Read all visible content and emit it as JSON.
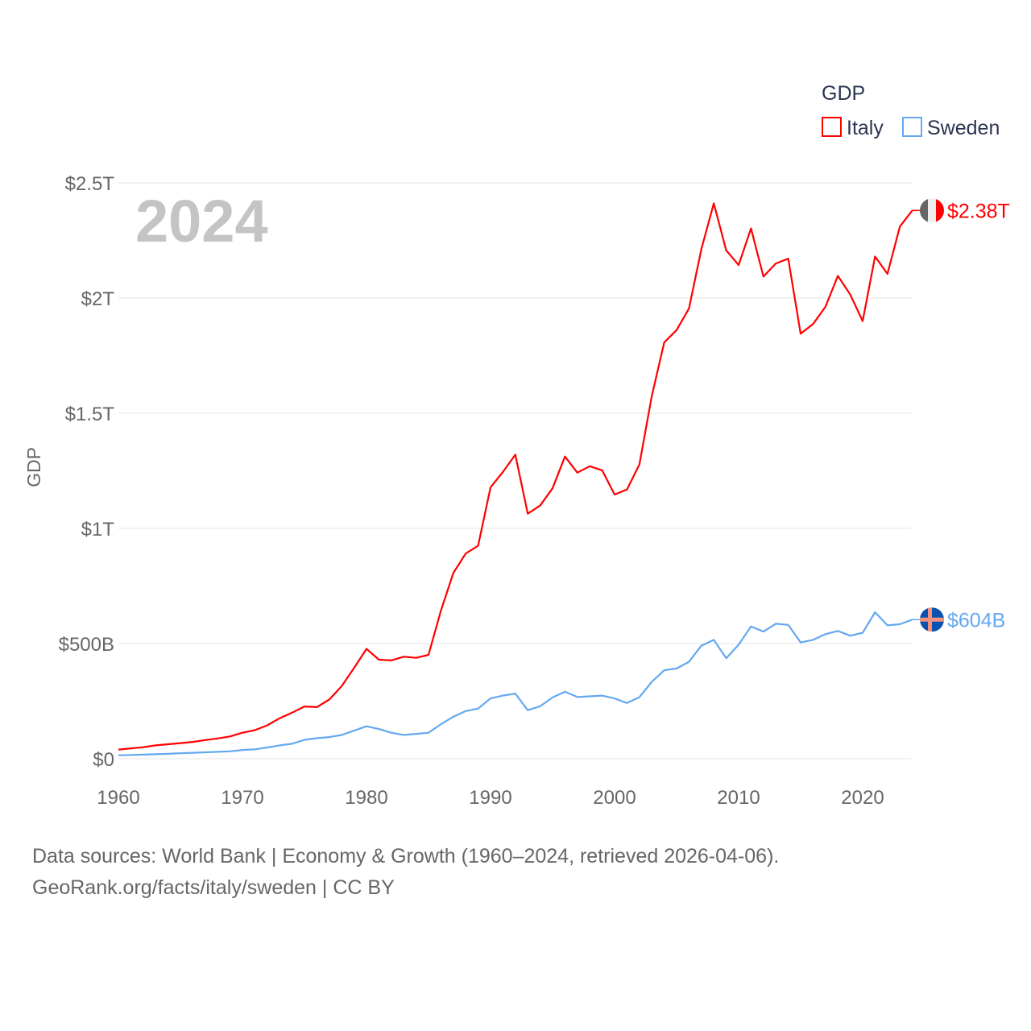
{
  "chart_data": {
    "type": "line",
    "title": "GDP",
    "ylabel": "GDP",
    "xlabel": "",
    "year_watermark": "2024",
    "xlim": [
      1960,
      2024
    ],
    "ylim": [
      0,
      2.5
    ],
    "y_unit": "trillion USD",
    "x_ticks": [
      "1960",
      "1970",
      "1980",
      "1990",
      "2000",
      "2010",
      "2020"
    ],
    "y_ticks": [
      {
        "value": 0,
        "label": "$0"
      },
      {
        "value": 0.5,
        "label": "$500B"
      },
      {
        "value": 1,
        "label": "$1T"
      },
      {
        "value": 1.5,
        "label": "$1.5T"
      },
      {
        "value": 2,
        "label": "$2T"
      },
      {
        "value": 2.5,
        "label": "$2.5T"
      }
    ],
    "grid": true,
    "legend": {
      "title": "GDP",
      "placement": "top-right"
    },
    "x_start": 1960,
    "series": [
      {
        "name": "Italy",
        "color": "#ff0000",
        "end_label": "$2.38T",
        "flag": "italy-flag",
        "values": [
          0.04,
          0.045,
          0.05,
          0.058,
          0.063,
          0.068,
          0.073,
          0.081,
          0.088,
          0.097,
          0.113,
          0.124,
          0.145,
          0.176,
          0.2,
          0.227,
          0.224,
          0.257,
          0.315,
          0.394,
          0.477,
          0.43,
          0.427,
          0.443,
          0.438,
          0.451,
          0.643,
          0.806,
          0.891,
          0.925,
          1.178,
          1.245,
          1.32,
          1.064,
          1.099,
          1.174,
          1.312,
          1.242,
          1.27,
          1.252,
          1.147,
          1.169,
          1.277,
          1.574,
          1.807,
          1.861,
          1.955,
          2.213,
          2.411,
          2.207,
          2.143,
          2.302,
          2.093,
          2.15,
          2.171,
          1.845,
          1.887,
          1.962,
          2.096,
          2.015,
          1.9,
          2.18,
          2.105,
          2.31,
          2.38
        ]
      },
      {
        "name": "Sweden",
        "color": "#64a8f0",
        "end_label": "$604B",
        "flag": "sweden-flag",
        "values": [
          0.015,
          0.0165,
          0.018,
          0.0195,
          0.0215,
          0.024,
          0.026,
          0.028,
          0.03,
          0.032,
          0.038,
          0.041,
          0.049,
          0.058,
          0.065,
          0.082,
          0.089,
          0.094,
          0.103,
          0.122,
          0.141,
          0.129,
          0.113,
          0.103,
          0.108,
          0.113,
          0.15,
          0.182,
          0.207,
          0.218,
          0.262,
          0.274,
          0.283,
          0.211,
          0.228,
          0.266,
          0.291,
          0.268,
          0.271,
          0.274,
          0.262,
          0.242,
          0.267,
          0.334,
          0.384,
          0.392,
          0.421,
          0.491,
          0.516,
          0.436,
          0.495,
          0.574,
          0.552,
          0.586,
          0.581,
          0.505,
          0.516,
          0.541,
          0.555,
          0.534,
          0.547,
          0.636,
          0.579,
          0.584,
          0.604
        ]
      }
    ]
  },
  "footer": {
    "line1": "Data sources: World Bank | Economy & Growth (1960–2024, retrieved 2026-04-06).",
    "line2": "GeoRank.org/facts/italy/sweden | CC BY"
  }
}
